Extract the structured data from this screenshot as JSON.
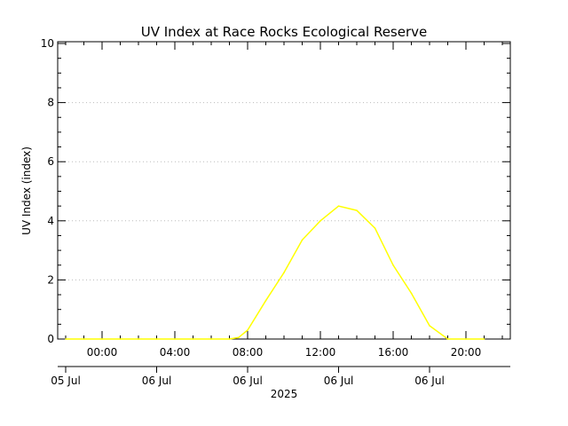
{
  "chart_data": {
    "type": "line",
    "title": "UV Index at Race Rocks Ecological Reserve",
    "ylabel": "UV Index (index)",
    "xlabel": "2025",
    "ylim": [
      0,
      10
    ],
    "y_ticks": [
      "0",
      "2",
      "4",
      "6",
      "8",
      "10"
    ],
    "grid": true,
    "x_range": [
      "2025-07-05 22:00",
      "2025-07-06 22:00"
    ],
    "time_ticks": [
      {
        "label": "00:00",
        "time": "2025-07-06 00:00"
      },
      {
        "label": "04:00",
        "time": "2025-07-06 04:00"
      },
      {
        "label": "08:00",
        "time": "2025-07-06 08:00"
      },
      {
        "label": "12:00",
        "time": "2025-07-06 12:00"
      },
      {
        "label": "16:00",
        "time": "2025-07-06 16:00"
      },
      {
        "label": "20:00",
        "time": "2025-07-06 20:00"
      }
    ],
    "date_ticks": [
      {
        "label": "05 Jul",
        "time": "2025-07-05 22:00"
      },
      {
        "label": "06 Jul",
        "time": "2025-07-06 03:00"
      },
      {
        "label": "06 Jul",
        "time": "2025-07-06 08:00"
      },
      {
        "label": "06 Jul",
        "time": "2025-07-06 13:00"
      },
      {
        "label": "06 Jul",
        "time": "2025-07-06 18:00"
      }
    ],
    "series": [
      {
        "color": "#ffff00",
        "x": [
          "2025-07-05 22:00",
          "2025-07-05 23:00",
          "2025-07-06 00:00",
          "2025-07-06 01:00",
          "2025-07-06 02:00",
          "2025-07-06 03:00",
          "2025-07-06 04:00",
          "2025-07-06 05:00",
          "2025-07-06 06:00",
          "2025-07-06 07:00",
          "2025-07-06 07:30",
          "2025-07-06 08:00",
          "2025-07-06 09:00",
          "2025-07-06 10:00",
          "2025-07-06 11:00",
          "2025-07-06 12:00",
          "2025-07-06 13:00",
          "2025-07-06 14:00",
          "2025-07-06 15:00",
          "2025-07-06 16:00",
          "2025-07-06 17:00",
          "2025-07-06 18:00",
          "2025-07-06 19:00",
          "2025-07-06 20:00",
          "2025-07-06 21:00"
        ],
        "values": [
          0,
          0,
          0,
          0,
          0,
          0,
          0,
          0,
          0,
          0,
          0.05,
          0.3,
          1.3,
          2.25,
          3.35,
          4.0,
          4.5,
          4.35,
          3.75,
          2.5,
          1.55,
          0.45,
          0,
          0,
          0
        ]
      }
    ]
  }
}
